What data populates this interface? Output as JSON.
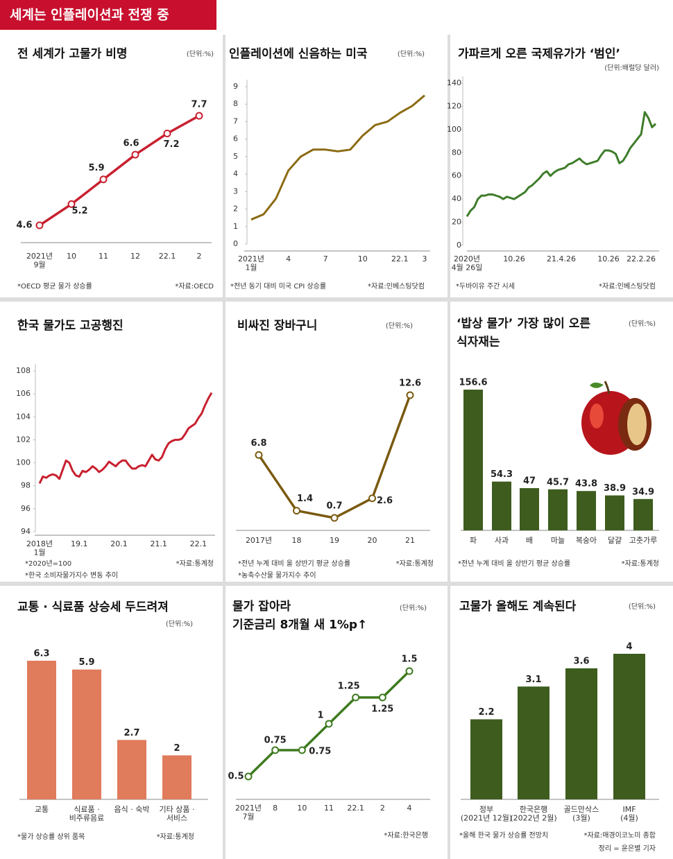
{
  "header": {
    "title": "세계는 인플레이션과 전쟁 중"
  },
  "credit": "정리 = 윤은별 기자",
  "chart_data": [
    {
      "type": "line",
      "title": "전 세계가 고물가 비명",
      "unit": "(단위:%)",
      "color": "#c8202f",
      "categories": [
        "2021년\n9월",
        "10",
        "11",
        "12",
        "22.1",
        "2"
      ],
      "values": [
        4.6,
        5.2,
        5.9,
        6.6,
        7.2,
        7.7
      ],
      "notes": [
        "*OECD 평균 물가 상승률"
      ],
      "source": "*자료:OECD"
    },
    {
      "type": "line",
      "title": "인플레이션에 신음하는 미국",
      "unit": "(단위:%)",
      "color": "#8b6a12",
      "categories": [
        "2021년\n1월",
        null,
        null,
        "4",
        null,
        null,
        "7",
        null,
        null,
        "10",
        null,
        null,
        "22.1",
        null,
        "3"
      ],
      "values": [
        1.4,
        1.7,
        2.6,
        4.2,
        5.0,
        5.4,
        5.4,
        5.3,
        5.4,
        6.2,
        6.8,
        7.0,
        7.5,
        7.9,
        8.5
      ],
      "ylim": [
        0,
        9
      ],
      "yticks": [
        0,
        1,
        2,
        3,
        4,
        5,
        6,
        7,
        8,
        9
      ],
      "notes": [
        "*전년 동기 대비 미국 CPI 상승률"
      ],
      "source": "*자료:인베스팅닷컴"
    },
    {
      "type": "line",
      "title": "가파르게 오른 국제유가가 ‘범인’",
      "unit": "(단위:배럴당 달러)",
      "color": "#3e7d2a",
      "categories": [
        "2020년\n4월 26일",
        null,
        null,
        null,
        null,
        null,
        null,
        null,
        null,
        null,
        null,
        null,
        null,
        "10.26",
        null,
        null,
        null,
        null,
        null,
        null,
        null,
        null,
        null,
        null,
        null,
        null,
        "21.4.26",
        null,
        null,
        null,
        null,
        null,
        null,
        null,
        null,
        null,
        null,
        null,
        null,
        "10.26",
        null,
        null,
        null,
        null,
        null,
        null,
        null,
        null,
        "22.2.26",
        null,
        null,
        null,
        null
      ],
      "values": [
        25,
        30,
        33,
        40,
        43,
        43,
        44,
        44,
        43,
        42,
        40,
        42,
        41,
        40,
        42,
        44,
        46,
        50,
        52,
        55,
        58,
        62,
        64,
        60,
        63,
        65,
        66,
        67,
        70,
        71,
        73,
        75,
        72,
        70,
        71,
        72,
        73,
        78,
        82,
        82,
        81,
        79,
        71,
        73,
        78,
        84,
        88,
        92,
        96,
        115,
        110,
        102,
        105
      ],
      "ylim": [
        0,
        140
      ],
      "yticks": [
        0,
        20,
        40,
        60,
        80,
        100,
        120,
        140
      ],
      "notes": [
        "*두바이유 주간 시세"
      ],
      "source": "*자료:인베스팅닷컴"
    },
    {
      "type": "line",
      "title": "한국 물가도 고공행진",
      "color": "#c8202f",
      "categories": [
        "2018년\n1월",
        null,
        null,
        null,
        null,
        null,
        null,
        null,
        null,
        null,
        null,
        null,
        "19.1",
        null,
        null,
        null,
        null,
        null,
        null,
        null,
        null,
        null,
        null,
        null,
        "20.1",
        null,
        null,
        null,
        null,
        null,
        null,
        null,
        null,
        null,
        null,
        null,
        "21.1",
        null,
        null,
        null,
        null,
        null,
        null,
        null,
        null,
        null,
        null,
        null,
        "22.1",
        null,
        null,
        null,
        null
      ],
      "values": [
        98.2,
        98.8,
        98.7,
        98.9,
        99.0,
        98.9,
        98.6,
        99.4,
        100.2,
        100.0,
        99.3,
        98.9,
        98.8,
        99.3,
        99.2,
        99.4,
        99.7,
        99.5,
        99.2,
        99.4,
        99.7,
        100.1,
        99.9,
        99.7,
        100.0,
        100.2,
        100.2,
        99.8,
        99.5,
        99.5,
        99.7,
        99.8,
        99.7,
        100.2,
        100.7,
        100.3,
        100.2,
        100.5,
        101.2,
        101.7,
        101.9,
        102.0,
        102.0,
        102.1,
        102.5,
        103.0,
        103.2,
        103.4,
        103.9,
        104.3,
        105.0,
        105.6,
        106.1
      ],
      "ylim": [
        94,
        108
      ],
      "yticks": [
        94,
        96,
        98,
        100,
        102,
        104,
        106,
        108
      ],
      "notes": [
        "*2020년=100",
        "*한국 소비자물가지수 변동 추이"
      ],
      "source": "*자료:통계청"
    },
    {
      "type": "line",
      "title": "비싸진 장바구니",
      "unit": "(단위:%)",
      "color": "#7a5a10",
      "categories": [
        "2017년",
        "18",
        "19",
        "20",
        "21"
      ],
      "values": [
        6.8,
        1.4,
        0.7,
        2.6,
        12.6
      ],
      "notes": [
        "*전년 누계 대비 올 상반기 평균 상승률",
        "*농축수산물 물가지수 추이"
      ],
      "source": "*자료:통계청"
    },
    {
      "type": "bar",
      "title": "‘밥상 물가’ 가장 많이 오른\n식자재는",
      "unit": "(단위:%)",
      "color": "#3d5c1e",
      "categories": [
        "파",
        "사과",
        "배",
        "마늘",
        "복숭아",
        "달걀",
        "고춧가루"
      ],
      "values": [
        156.6,
        54.3,
        47,
        45.7,
        43.8,
        38.9,
        34.9
      ],
      "notes": [
        "*전년 누계 대비 올 상반기 평균 상승률"
      ],
      "source": "*자료:통계청"
    },
    {
      "type": "bar",
      "title": "교통 · 식료품 상승세 두드려져",
      "unit": "(단위:%)",
      "color": "#e07b5c",
      "categories": [
        "교통",
        "식료품 ·\n비주류음료",
        "음식 · 숙박",
        "기타 상품 ·\n서비스"
      ],
      "values": [
        6.3,
        5.9,
        2.7,
        2
      ],
      "notes": [
        "*물가 상승률 상위 품목"
      ],
      "source": "*자료:통계청"
    },
    {
      "type": "line",
      "title": "물가 잡아라\n기준금리 8개월 새 1%p↑",
      "unit": "(단위:%)",
      "color": "#3d7a1e",
      "categories": [
        "2021년\n7월",
        "8",
        "10",
        "11",
        "22.1",
        "2",
        "4"
      ],
      "values": [
        0.5,
        0.75,
        0.75,
        1,
        1.25,
        1.25,
        1.5
      ],
      "notes": [],
      "source": "*자료:한국은행"
    },
    {
      "type": "bar",
      "title": "고물가 올해도 계속된다",
      "unit": "(단위:%)",
      "color": "#3d5c1e",
      "categories": [
        "정부\n(2021년 12월)",
        "한국은행\n(2022년 2월)",
        "골드만삭스\n(3월)",
        "IMF\n(4월)"
      ],
      "values": [
        2.2,
        3.1,
        3.6,
        4
      ],
      "notes": [
        "*올해 한국 물가 상승률 전망치"
      ],
      "source": "*자료:매경이코노미 종합"
    }
  ]
}
